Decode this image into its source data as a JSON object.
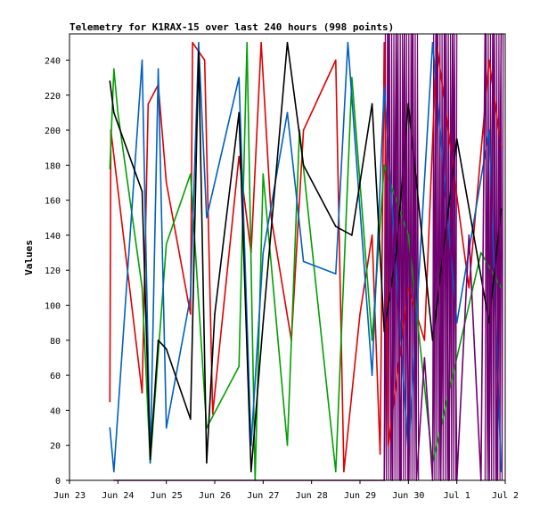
{
  "chart_data": {
    "type": "line",
    "title": "Telemetry for K1RAX-15 over last 240 hours (998 points)",
    "xlabel": "",
    "ylabel": "Values",
    "x_range": [
      "2025-06-23",
      "2025-07-02"
    ],
    "x_tick_labels": [
      "Jun 23",
      "Jun 24",
      "Jun 25",
      "Jun 26",
      "Jun 27",
      "Jun 28",
      "Jun 29",
      "Jun 30",
      "Jul 1",
      "Jul 2"
    ],
    "ylim": [
      0,
      255
    ],
    "y_ticks": [
      0,
      20,
      40,
      60,
      80,
      100,
      120,
      140,
      160,
      180,
      200,
      220,
      240
    ],
    "grid": false,
    "legend": "none",
    "series_colors": [
      "#e00000",
      "#00a000",
      "#0060c0",
      "#000000",
      "#700070"
    ],
    "series": [
      {
        "color": "#e00000",
        "points": [
          [
            "2025-06-23 20:00",
            45
          ],
          [
            "2025-06-23 20:30",
            200
          ],
          [
            "2025-06-24 12:00",
            50
          ],
          [
            "2025-06-24 15:00",
            215
          ],
          [
            "2025-06-24 20:00",
            226
          ],
          [
            "2025-06-25 00:00",
            170
          ],
          [
            "2025-06-25 12:00",
            95
          ],
          [
            "2025-06-25 13:00",
            250
          ],
          [
            "2025-06-25 19:00",
            240
          ],
          [
            "2025-06-25 23:00",
            38
          ],
          [
            "2025-06-26 12:00",
            185
          ],
          [
            "2025-06-26 18:00",
            130
          ],
          [
            "2025-06-26 23:00",
            250
          ],
          [
            "2025-06-27 04:00",
            150
          ],
          [
            "2025-06-27 14:00",
            80
          ],
          [
            "2025-06-27 20:00",
            200
          ],
          [
            "2025-06-28 12:00",
            240
          ],
          [
            "2025-06-28 16:00",
            5
          ],
          [
            "2025-06-29 00:00",
            95
          ],
          [
            "2025-06-29 06:00",
            140
          ],
          [
            "2025-06-29 10:00",
            15
          ],
          [
            "2025-06-29 12:00",
            250
          ],
          [
            "2025-06-29 14:00",
            20
          ],
          [
            "2025-06-30 00:00",
            110
          ],
          [
            "2025-06-30 08:00",
            80
          ],
          [
            "2025-06-30 14:00",
            250
          ],
          [
            "2025-07-01 06:00",
            110
          ],
          [
            "2025-07-01 16:00",
            240
          ],
          [
            "2025-07-01 22:00",
            190
          ]
        ]
      },
      {
        "color": "#00a000",
        "points": [
          [
            "2025-06-23 20:00",
            178
          ],
          [
            "2025-06-23 22:00",
            235
          ],
          [
            "2025-06-24 00:00",
            210
          ],
          [
            "2025-06-24 12:00",
            110
          ],
          [
            "2025-06-24 16:00",
            10
          ],
          [
            "2025-06-25 00:00",
            135
          ],
          [
            "2025-06-25 12:00",
            175
          ],
          [
            "2025-06-25 20:00",
            30
          ],
          [
            "2025-06-26 12:00",
            65
          ],
          [
            "2025-06-26 16:00",
            250
          ],
          [
            "2025-06-26 20:00",
            0
          ],
          [
            "2025-06-27 00:00",
            175
          ],
          [
            "2025-06-27 12:00",
            20
          ],
          [
            "2025-06-27 18:00",
            200
          ],
          [
            "2025-06-28 12:00",
            5
          ],
          [
            "2025-06-28 20:00",
            230
          ],
          [
            "2025-06-29 06:00",
            80
          ],
          [
            "2025-06-29 12:00",
            180
          ],
          [
            "2025-06-30 00:00",
            140
          ],
          [
            "2025-06-30 12:00",
            10
          ],
          [
            "2025-07-01 00:00",
            70
          ],
          [
            "2025-07-01 12:00",
            130
          ],
          [
            "2025-07-01 22:00",
            110
          ]
        ]
      },
      {
        "color": "#0060c0",
        "points": [
          [
            "2025-06-23 20:00",
            30
          ],
          [
            "2025-06-23 22:00",
            5
          ],
          [
            "2025-06-24 12:00",
            240
          ],
          [
            "2025-06-24 16:00",
            10
          ],
          [
            "2025-06-24 20:00",
            235
          ],
          [
            "2025-06-25 00:00",
            30
          ],
          [
            "2025-06-25 12:00",
            105
          ],
          [
            "2025-06-25 16:00",
            250
          ],
          [
            "2025-06-25 20:00",
            150
          ],
          [
            "2025-06-26 12:00",
            230
          ],
          [
            "2025-06-26 18:00",
            20
          ],
          [
            "2025-06-27 00:00",
            130
          ],
          [
            "2025-06-27 12:00",
            210
          ],
          [
            "2025-06-27 20:00",
            125
          ],
          [
            "2025-06-28 12:00",
            118
          ],
          [
            "2025-06-28 18:00",
            250
          ],
          [
            "2025-06-29 06:00",
            60
          ],
          [
            "2025-06-29 12:00",
            225
          ],
          [
            "2025-06-30 00:00",
            15
          ],
          [
            "2025-06-30 12:00",
            250
          ],
          [
            "2025-07-01 00:00",
            90
          ],
          [
            "2025-07-01 16:00",
            200
          ],
          [
            "2025-07-01 22:00",
            5
          ]
        ]
      },
      {
        "color": "#000000",
        "points": [
          [
            "2025-06-23 20:00",
            228
          ],
          [
            "2025-06-23 22:00",
            210
          ],
          [
            "2025-06-24 12:00",
            165
          ],
          [
            "2025-06-24 16:00",
            12
          ],
          [
            "2025-06-24 20:00",
            80
          ],
          [
            "2025-06-25 00:00",
            75
          ],
          [
            "2025-06-25 12:00",
            35
          ],
          [
            "2025-06-25 16:00",
            245
          ],
          [
            "2025-06-25 20:00",
            10
          ],
          [
            "2025-06-26 00:00",
            95
          ],
          [
            "2025-06-26 12:00",
            210
          ],
          [
            "2025-06-26 18:00",
            5
          ],
          [
            "2025-06-27 00:00",
            90
          ],
          [
            "2025-06-27 12:00",
            250
          ],
          [
            "2025-06-27 20:00",
            180
          ],
          [
            "2025-06-28 12:00",
            145
          ],
          [
            "2025-06-28 20:00",
            140
          ],
          [
            "2025-06-29 06:00",
            215
          ],
          [
            "2025-06-29 12:00",
            85
          ],
          [
            "2025-06-29 18:00",
            130
          ],
          [
            "2025-06-30 00:00",
            215
          ],
          [
            "2025-06-30 12:00",
            80
          ],
          [
            "2025-07-01 00:00",
            195
          ],
          [
            "2025-07-01 16:00",
            90
          ],
          [
            "2025-07-01 22:00",
            155
          ]
        ]
      },
      {
        "color": "#700070",
        "points": [
          [
            "2025-06-23 22:00",
            0
          ],
          [
            "2025-06-29 12:00",
            0
          ],
          [
            "2025-06-29 14:00",
            255
          ],
          [
            "2025-06-29 16:00",
            0
          ],
          [
            "2025-06-29 18:00",
            255
          ],
          [
            "2025-06-29 20:00",
            0
          ],
          [
            "2025-06-29 22:00",
            255
          ],
          [
            "2025-06-30 00:00",
            0
          ],
          [
            "2025-06-30 02:00",
            255
          ],
          [
            "2025-06-30 04:00",
            0
          ],
          [
            "2025-06-30 08:00",
            70
          ],
          [
            "2025-06-30 12:00",
            0
          ],
          [
            "2025-06-30 14:00",
            255
          ],
          [
            "2025-06-30 16:00",
            0
          ],
          [
            "2025-06-30 18:00",
            255
          ],
          [
            "2025-06-30 20:00",
            0
          ],
          [
            "2025-06-30 22:00",
            255
          ],
          [
            "2025-07-01 00:00",
            0
          ],
          [
            "2025-07-01 06:00",
            140
          ],
          [
            "2025-07-01 12:00",
            0
          ],
          [
            "2025-07-01 14:00",
            255
          ],
          [
            "2025-07-01 16:00",
            0
          ],
          [
            "2025-07-01 18:00",
            255
          ],
          [
            "2025-07-01 20:00",
            0
          ],
          [
            "2025-07-01 22:00",
            255
          ]
        ]
      }
    ],
    "dense_bands": [
      {
        "color": "#700070",
        "from": "2025-06-29 12:00",
        "to": "2025-06-30 05:00",
        "y": [
          0,
          255
        ]
      },
      {
        "color": "#700070",
        "from": "2025-06-30 12:00",
        "to": "2025-07-01 00:00",
        "y": [
          0,
          255
        ]
      },
      {
        "color": "#700070",
        "from": "2025-07-01 14:00",
        "to": "2025-07-01 23:00",
        "y": [
          0,
          255
        ]
      }
    ]
  }
}
